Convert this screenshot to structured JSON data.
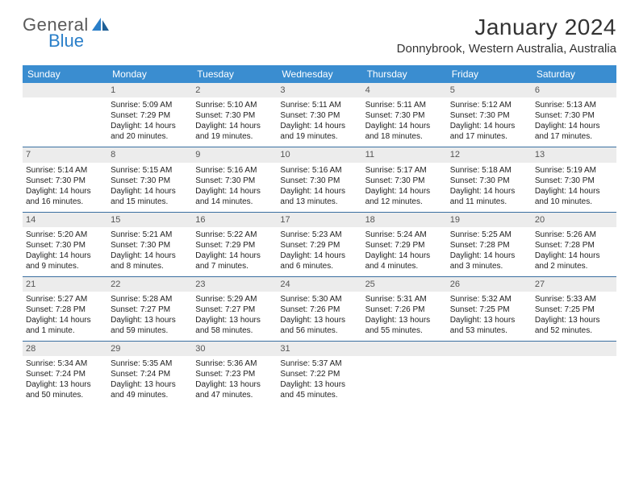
{
  "logo": {
    "text1": "General",
    "text2": "Blue"
  },
  "title": "January 2024",
  "location": "Donnybrook, Western Australia, Australia",
  "colors": {
    "header_bg": "#3a8dd0",
    "header_text": "#ffffff",
    "daynum_bg": "#ececec",
    "week_border": "#3a6fa0",
    "logo_gray": "#5a5a5a",
    "logo_blue": "#2a7fc9"
  },
  "day_names": [
    "Sunday",
    "Monday",
    "Tuesday",
    "Wednesday",
    "Thursday",
    "Friday",
    "Saturday"
  ],
  "start_offset": 1,
  "days_in_month": 31,
  "days": {
    "1": {
      "sunrise": "5:09 AM",
      "sunset": "7:29 PM",
      "daylight": "14 hours and 20 minutes."
    },
    "2": {
      "sunrise": "5:10 AM",
      "sunset": "7:30 PM",
      "daylight": "14 hours and 19 minutes."
    },
    "3": {
      "sunrise": "5:11 AM",
      "sunset": "7:30 PM",
      "daylight": "14 hours and 19 minutes."
    },
    "4": {
      "sunrise": "5:11 AM",
      "sunset": "7:30 PM",
      "daylight": "14 hours and 18 minutes."
    },
    "5": {
      "sunrise": "5:12 AM",
      "sunset": "7:30 PM",
      "daylight": "14 hours and 17 minutes."
    },
    "6": {
      "sunrise": "5:13 AM",
      "sunset": "7:30 PM",
      "daylight": "14 hours and 17 minutes."
    },
    "7": {
      "sunrise": "5:14 AM",
      "sunset": "7:30 PM",
      "daylight": "14 hours and 16 minutes."
    },
    "8": {
      "sunrise": "5:15 AM",
      "sunset": "7:30 PM",
      "daylight": "14 hours and 15 minutes."
    },
    "9": {
      "sunrise": "5:16 AM",
      "sunset": "7:30 PM",
      "daylight": "14 hours and 14 minutes."
    },
    "10": {
      "sunrise": "5:16 AM",
      "sunset": "7:30 PM",
      "daylight": "14 hours and 13 minutes."
    },
    "11": {
      "sunrise": "5:17 AM",
      "sunset": "7:30 PM",
      "daylight": "14 hours and 12 minutes."
    },
    "12": {
      "sunrise": "5:18 AM",
      "sunset": "7:30 PM",
      "daylight": "14 hours and 11 minutes."
    },
    "13": {
      "sunrise": "5:19 AM",
      "sunset": "7:30 PM",
      "daylight": "14 hours and 10 minutes."
    },
    "14": {
      "sunrise": "5:20 AM",
      "sunset": "7:30 PM",
      "daylight": "14 hours and 9 minutes."
    },
    "15": {
      "sunrise": "5:21 AM",
      "sunset": "7:30 PM",
      "daylight": "14 hours and 8 minutes."
    },
    "16": {
      "sunrise": "5:22 AM",
      "sunset": "7:29 PM",
      "daylight": "14 hours and 7 minutes."
    },
    "17": {
      "sunrise": "5:23 AM",
      "sunset": "7:29 PM",
      "daylight": "14 hours and 6 minutes."
    },
    "18": {
      "sunrise": "5:24 AM",
      "sunset": "7:29 PM",
      "daylight": "14 hours and 4 minutes."
    },
    "19": {
      "sunrise": "5:25 AM",
      "sunset": "7:28 PM",
      "daylight": "14 hours and 3 minutes."
    },
    "20": {
      "sunrise": "5:26 AM",
      "sunset": "7:28 PM",
      "daylight": "14 hours and 2 minutes."
    },
    "21": {
      "sunrise": "5:27 AM",
      "sunset": "7:28 PM",
      "daylight": "14 hours and 1 minute."
    },
    "22": {
      "sunrise": "5:28 AM",
      "sunset": "7:27 PM",
      "daylight": "13 hours and 59 minutes."
    },
    "23": {
      "sunrise": "5:29 AM",
      "sunset": "7:27 PM",
      "daylight": "13 hours and 58 minutes."
    },
    "24": {
      "sunrise": "5:30 AM",
      "sunset": "7:26 PM",
      "daylight": "13 hours and 56 minutes."
    },
    "25": {
      "sunrise": "5:31 AM",
      "sunset": "7:26 PM",
      "daylight": "13 hours and 55 minutes."
    },
    "26": {
      "sunrise": "5:32 AM",
      "sunset": "7:25 PM",
      "daylight": "13 hours and 53 minutes."
    },
    "27": {
      "sunrise": "5:33 AM",
      "sunset": "7:25 PM",
      "daylight": "13 hours and 52 minutes."
    },
    "28": {
      "sunrise": "5:34 AM",
      "sunset": "7:24 PM",
      "daylight": "13 hours and 50 minutes."
    },
    "29": {
      "sunrise": "5:35 AM",
      "sunset": "7:24 PM",
      "daylight": "13 hours and 49 minutes."
    },
    "30": {
      "sunrise": "5:36 AM",
      "sunset": "7:23 PM",
      "daylight": "13 hours and 47 minutes."
    },
    "31": {
      "sunrise": "5:37 AM",
      "sunset": "7:22 PM",
      "daylight": "13 hours and 45 minutes."
    }
  },
  "labels": {
    "sunrise": "Sunrise: ",
    "sunset": "Sunset: ",
    "daylight": "Daylight: "
  }
}
